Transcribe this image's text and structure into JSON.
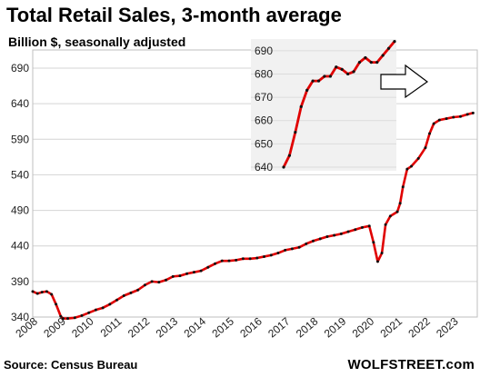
{
  "header": {
    "title": "Total Retail Sales, 3-month average",
    "subtitle": "Billion $, seasonally adjusted"
  },
  "footer": {
    "source": "Source: Census Bureau",
    "watermark": "WOLFSTREET.com"
  },
  "colors": {
    "line": "#e00000",
    "markers": "#111111",
    "grid": "#d4d4d4",
    "inset_background": "#f1f1f1",
    "arrow_fill": "#ffffff",
    "arrow_stroke": "#000000"
  },
  "chart_data": [
    {
      "type": "line",
      "title": "Total Retail Sales, 3-month average",
      "subtitle": "Billion $, seasonally adjusted",
      "xlabel": "",
      "ylabel": "",
      "x_tick_labels": [
        "2008",
        "2009",
        "2010",
        "2011",
        "2012",
        "2013",
        "2014",
        "2015",
        "2016",
        "2017",
        "2018",
        "2019",
        "2020",
        "2021",
        "2022",
        "2023"
      ],
      "y_tick_labels": [
        "340",
        "390",
        "440",
        "490",
        "540",
        "590",
        "640",
        "690"
      ],
      "ylim": [
        340,
        690
      ],
      "grid": true,
      "legend": "none",
      "series": [
        {
          "values": [
            {
              "x": 2008.0,
              "y": 376
            },
            {
              "x": 2008.17,
              "y": 373
            },
            {
              "x": 2008.33,
              "y": 375
            },
            {
              "x": 2008.5,
              "y": 376
            },
            {
              "x": 2008.67,
              "y": 372
            },
            {
              "x": 2008.83,
              "y": 358
            },
            {
              "x": 2009.0,
              "y": 341
            },
            {
              "x": 2009.08,
              "y": 338
            },
            {
              "x": 2009.25,
              "y": 338
            },
            {
              "x": 2009.5,
              "y": 339
            },
            {
              "x": 2009.75,
              "y": 342
            },
            {
              "x": 2010.0,
              "y": 346
            },
            {
              "x": 2010.25,
              "y": 350
            },
            {
              "x": 2010.5,
              "y": 353
            },
            {
              "x": 2010.75,
              "y": 358
            },
            {
              "x": 2011.0,
              "y": 364
            },
            {
              "x": 2011.25,
              "y": 370
            },
            {
              "x": 2011.5,
              "y": 374
            },
            {
              "x": 2011.75,
              "y": 378
            },
            {
              "x": 2012.0,
              "y": 385
            },
            {
              "x": 2012.25,
              "y": 390
            },
            {
              "x": 2012.5,
              "y": 389
            },
            {
              "x": 2012.75,
              "y": 392
            },
            {
              "x": 2013.0,
              "y": 397
            },
            {
              "x": 2013.25,
              "y": 398
            },
            {
              "x": 2013.5,
              "y": 401
            },
            {
              "x": 2013.75,
              "y": 403
            },
            {
              "x": 2014.0,
              "y": 405
            },
            {
              "x": 2014.25,
              "y": 410
            },
            {
              "x": 2014.5,
              "y": 415
            },
            {
              "x": 2014.75,
              "y": 419
            },
            {
              "x": 2015.0,
              "y": 419
            },
            {
              "x": 2015.25,
              "y": 420
            },
            {
              "x": 2015.5,
              "y": 422
            },
            {
              "x": 2015.75,
              "y": 422
            },
            {
              "x": 2016.0,
              "y": 423
            },
            {
              "x": 2016.25,
              "y": 425
            },
            {
              "x": 2016.5,
              "y": 427
            },
            {
              "x": 2016.75,
              "y": 430
            },
            {
              "x": 2017.0,
              "y": 434
            },
            {
              "x": 2017.25,
              "y": 436
            },
            {
              "x": 2017.5,
              "y": 438
            },
            {
              "x": 2017.75,
              "y": 443
            },
            {
              "x": 2018.0,
              "y": 447
            },
            {
              "x": 2018.25,
              "y": 450
            },
            {
              "x": 2018.5,
              "y": 453
            },
            {
              "x": 2018.75,
              "y": 455
            },
            {
              "x": 2019.0,
              "y": 457
            },
            {
              "x": 2019.25,
              "y": 460
            },
            {
              "x": 2019.5,
              "y": 463
            },
            {
              "x": 2019.75,
              "y": 466
            },
            {
              "x": 2020.0,
              "y": 468
            },
            {
              "x": 2020.15,
              "y": 445
            },
            {
              "x": 2020.3,
              "y": 418
            },
            {
              "x": 2020.45,
              "y": 430
            },
            {
              "x": 2020.58,
              "y": 470
            },
            {
              "x": 2020.75,
              "y": 482
            },
            {
              "x": 2021.0,
              "y": 488
            },
            {
              "x": 2021.1,
              "y": 500
            },
            {
              "x": 2021.2,
              "y": 523
            },
            {
              "x": 2021.35,
              "y": 548
            },
            {
              "x": 2021.5,
              "y": 552
            },
            {
              "x": 2021.75,
              "y": 563
            },
            {
              "x": 2022.0,
              "y": 578
            },
            {
              "x": 2022.15,
              "y": 598
            },
            {
              "x": 2022.3,
              "y": 612
            },
            {
              "x": 2022.5,
              "y": 617
            },
            {
              "x": 2022.75,
              "y": 619
            },
            {
              "x": 2023.0,
              "y": 621
            },
            {
              "x": 2023.25,
              "y": 622
            },
            {
              "x": 2023.5,
              "y": 625
            },
            {
              "x": 2023.7,
              "y": 627
            }
          ]
        }
      ]
    },
    {
      "type": "line",
      "title": "",
      "y_tick_labels": [
        "640",
        "650",
        "660",
        "670",
        "680",
        "690"
      ],
      "ylim": [
        640,
        695
      ],
      "grid": true,
      "legend": "none",
      "series": [
        {
          "values": [
            {
              "x": 1,
              "y": 640
            },
            {
              "x": 2,
              "y": 645
            },
            {
              "x": 3,
              "y": 655
            },
            {
              "x": 4,
              "y": 666
            },
            {
              "x": 5,
              "y": 673
            },
            {
              "x": 6,
              "y": 677
            },
            {
              "x": 7,
              "y": 677
            },
            {
              "x": 8,
              "y": 679
            },
            {
              "x": 9,
              "y": 679
            },
            {
              "x": 10,
              "y": 683
            },
            {
              "x": 11,
              "y": 682
            },
            {
              "x": 12,
              "y": 680
            },
            {
              "x": 13,
              "y": 681
            },
            {
              "x": 14,
              "y": 685
            },
            {
              "x": 15,
              "y": 687
            },
            {
              "x": 16,
              "y": 685
            },
            {
              "x": 17,
              "y": 685
            },
            {
              "x": 18,
              "y": 688
            },
            {
              "x": 19,
              "y": 691
            },
            {
              "x": 20,
              "y": 694
            }
          ]
        }
      ]
    }
  ]
}
